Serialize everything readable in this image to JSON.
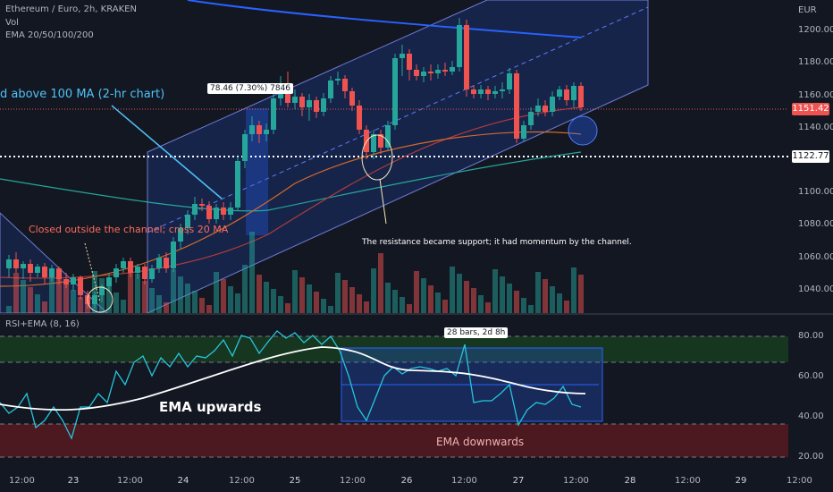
{
  "header": {
    "symbol_line": "Ethereum / Euro, 2h, KRAKEN",
    "vol_label": "Vol",
    "ema_label": "EMA 20/50/100/200",
    "currency": "EUR"
  },
  "price_axis": {
    "ticks": [
      "1200.00",
      "1180.00",
      "1160.00",
      "1140.00",
      "1100.00",
      "1080.00",
      "1060.00",
      "1040.00"
    ],
    "last_price": "1151.42",
    "level_price": "1122.77"
  },
  "rsi_panel": {
    "title": "RSI+EMA (8, 16)",
    "ticks": [
      "80.00",
      "60.00",
      "40.00",
      "20.00"
    ]
  },
  "time_axis": [
    "12:00",
    "23",
    "12:00",
    "24",
    "12:00",
    "25",
    "12:00",
    "26",
    "12:00",
    "27",
    "12:00",
    "28",
    "12:00",
    "29",
    "12:00"
  ],
  "annotations": {
    "above_ma": "d above 100 MA (2-hr chart)",
    "closed_outside": "Closed outside the channel; cross 20 MA",
    "measure": "78.46 (7.30%) 7846",
    "resistance_support": "The resistance became support; it had momentum by the channel.",
    "bars_measure": "28 bars, 2d 8h",
    "ema_up": "EMA upwards",
    "ema_down": "EMA downwards"
  },
  "colors": {
    "background": "#131722",
    "bull": "#26a69a",
    "bear": "#ef5350",
    "channel": "#2962ff",
    "annotation_blue": "#4fc3f7",
    "annotation_red": "#ff6b5e"
  }
}
